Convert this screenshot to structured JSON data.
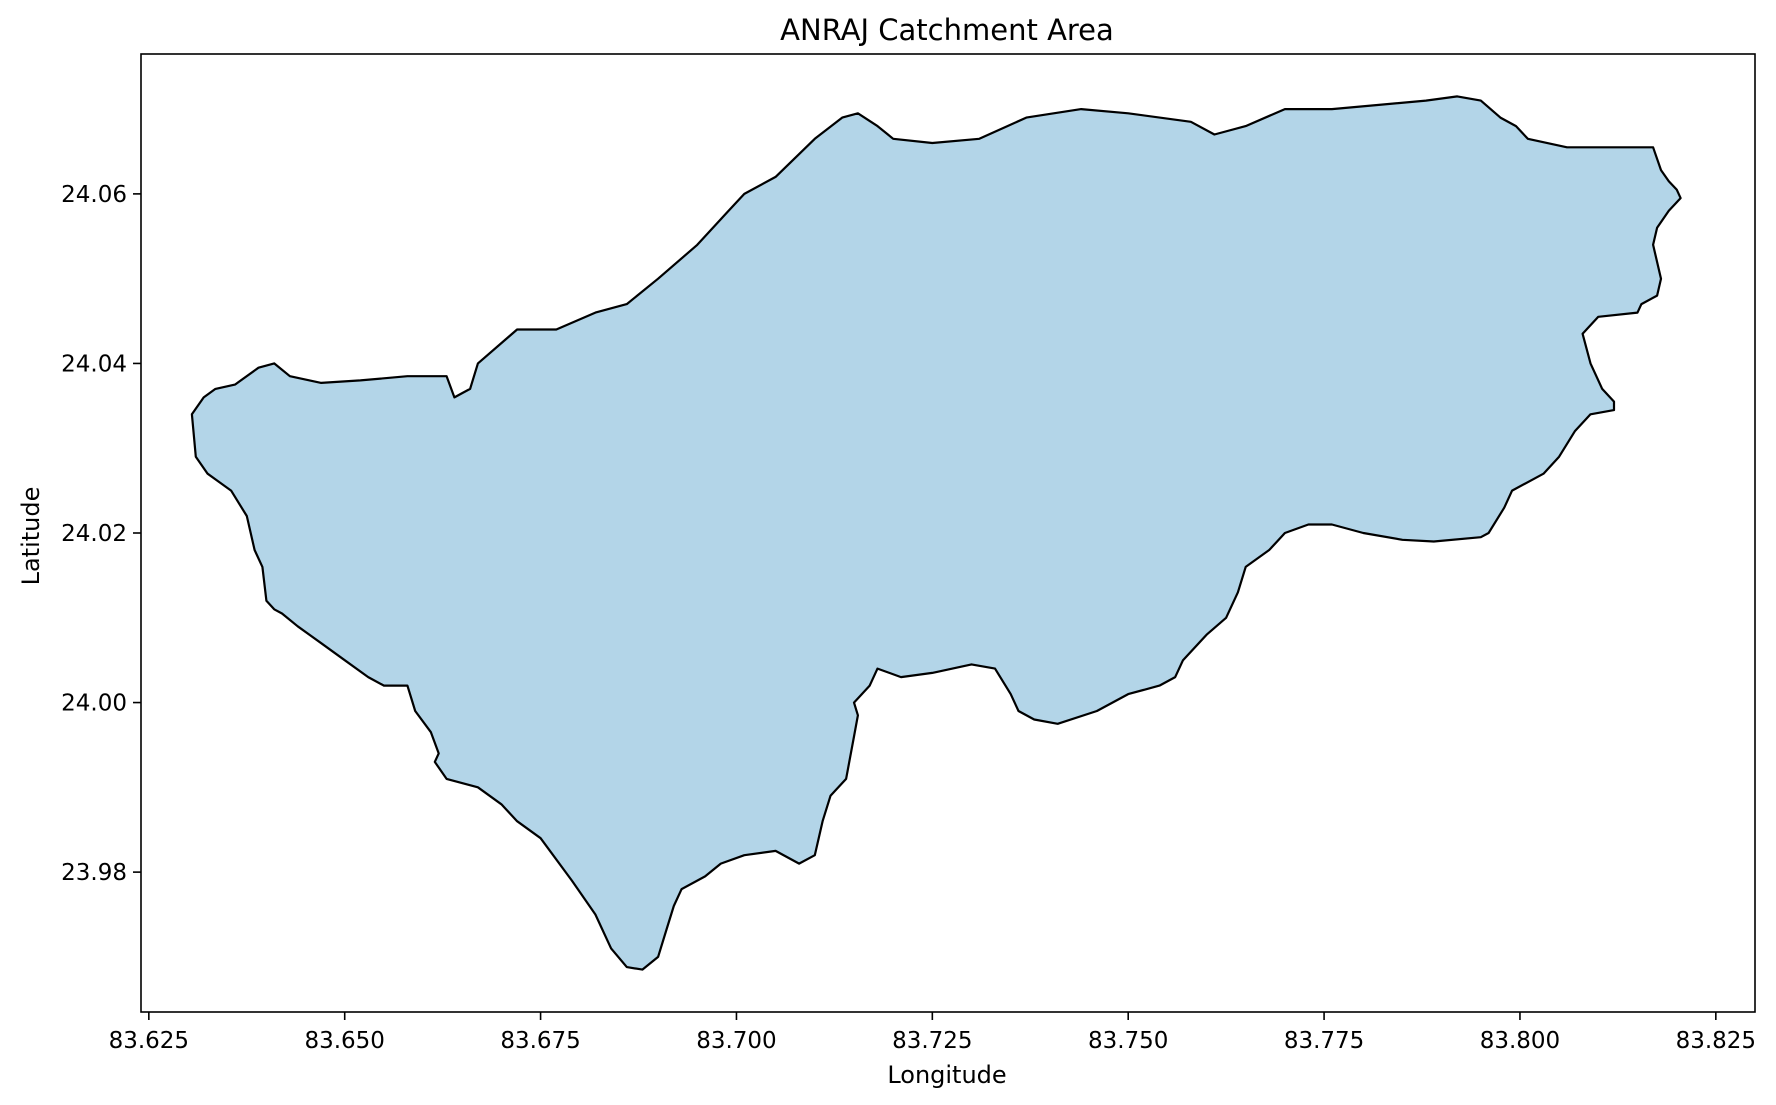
{
  "chart_data": {
    "type": "area",
    "title": "ANRAJ Catchment Area",
    "xlabel": "Longitude",
    "ylabel": "Latitude",
    "xlim": [
      83.624,
      83.83
    ],
    "ylim": [
      23.9635,
      24.0765
    ],
    "xticks": [
      83.625,
      83.65,
      83.675,
      83.7,
      83.725,
      83.75,
      83.775,
      83.8,
      83.825
    ],
    "xtick_labels": [
      "83.625",
      "83.650",
      "83.675",
      "83.700",
      "83.725",
      "83.750",
      "83.775",
      "83.800",
      "83.825"
    ],
    "yticks": [
      23.98,
      24.0,
      24.02,
      24.04,
      24.06
    ],
    "ytick_labels": [
      "23.98",
      "24.00",
      "24.02",
      "24.04",
      "24.06"
    ],
    "grid": false,
    "legend": "none",
    "fill_color": "#b3d5e8",
    "edge_color": "#000000",
    "boundary": {
      "lon": [
        83.6305,
        83.632,
        83.6335,
        83.636,
        83.639,
        83.641,
        83.643,
        83.647,
        83.652,
        83.658,
        83.663,
        83.664,
        83.665,
        83.666,
        83.667,
        83.672,
        83.677,
        83.682,
        83.686,
        83.69,
        83.695,
        83.699,
        83.701,
        83.705,
        83.71,
        83.7135,
        83.7155,
        83.718,
        83.72,
        83.725,
        83.731,
        83.737,
        83.744,
        83.75,
        83.758,
        83.761,
        83.765,
        83.77,
        83.776,
        83.782,
        83.788,
        83.792,
        83.795,
        83.7975,
        83.7995,
        83.801,
        83.806,
        83.817,
        83.818,
        83.819,
        83.82,
        83.8205,
        83.819,
        83.8175,
        83.817,
        83.818,
        83.8175,
        83.8155,
        83.815,
        83.81,
        83.808,
        83.809,
        83.8105,
        83.812,
        83.812,
        83.809,
        83.807,
        83.805,
        83.803,
        83.799,
        83.798,
        83.796,
        83.795,
        83.789,
        83.785,
        83.78,
        83.776,
        83.773,
        83.77,
        83.769,
        83.768,
        83.765,
        83.764,
        83.7625,
        83.76,
        83.757,
        83.756,
        83.754,
        83.75,
        83.746,
        83.741,
        83.738,
        83.736,
        83.735,
        83.733,
        83.73,
        83.725,
        83.721,
        83.718,
        83.717,
        83.715,
        83.7155,
        83.715,
        83.714,
        83.712,
        83.711,
        83.71,
        83.708,
        83.705,
        83.701,
        83.698,
        83.696,
        83.693,
        83.692,
        83.691,
        83.69,
        83.688,
        83.686,
        83.684,
        83.682,
        83.679,
        83.675,
        83.672,
        83.67,
        83.667,
        83.663,
        83.6615,
        83.662,
        83.661,
        83.659,
        83.658,
        83.655,
        83.653,
        83.65,
        83.647,
        83.644,
        83.642,
        83.641,
        83.64,
        83.6395,
        83.6385,
        83.6375,
        83.6355,
        83.634,
        83.6325,
        83.631
      ],
      "lat": [
        24.034,
        24.036,
        24.037,
        24.0375,
        24.0395,
        24.04,
        24.0385,
        24.0377,
        24.038,
        24.0385,
        24.0385,
        24.036,
        24.0365,
        24.037,
        24.04,
        24.044,
        24.044,
        24.046,
        24.047,
        24.05,
        24.054,
        24.058,
        24.06,
        24.062,
        24.0665,
        24.069,
        24.0695,
        24.068,
        24.0665,
        24.066,
        24.0665,
        24.069,
        24.07,
        24.0695,
        24.0685,
        24.067,
        24.068,
        24.07,
        24.07,
        24.0705,
        24.071,
        24.0715,
        24.071,
        24.069,
        24.068,
        24.0665,
        24.0655,
        24.0655,
        24.0628,
        24.0615,
        24.0605,
        24.0595,
        24.058,
        24.056,
        24.054,
        24.05,
        24.048,
        24.047,
        24.046,
        24.0455,
        24.0435,
        24.04,
        24.037,
        24.0355,
        24.0345,
        24.034,
        24.032,
        24.029,
        24.027,
        24.025,
        24.023,
        24.02,
        24.0195,
        24.019,
        24.0192,
        24.02,
        24.021,
        24.021,
        24.02,
        24.019,
        24.018,
        24.016,
        24.013,
        24.01,
        24.008,
        24.005,
        24.003,
        24.002,
        24.001,
        23.999,
        23.9975,
        23.998,
        23.999,
        24.001,
        24.004,
        24.0045,
        24.0035,
        24.003,
        24.004,
        24.002,
        24.0,
        23.9985,
        23.996,
        23.991,
        23.989,
        23.986,
        23.982,
        23.981,
        23.9825,
        23.982,
        23.981,
        23.9795,
        23.978,
        23.976,
        23.973,
        23.97,
        23.9685,
        23.9688,
        23.971,
        23.975,
        23.979,
        23.984,
        23.986,
        23.988,
        23.99,
        23.991,
        23.993,
        23.994,
        23.9965,
        23.999,
        24.002,
        24.002,
        24.003,
        24.005,
        24.007,
        24.009,
        24.0105,
        24.011,
        24.012,
        24.016,
        24.018,
        24.022,
        24.025,
        24.026,
        24.027,
        24.029
      ]
    }
  }
}
